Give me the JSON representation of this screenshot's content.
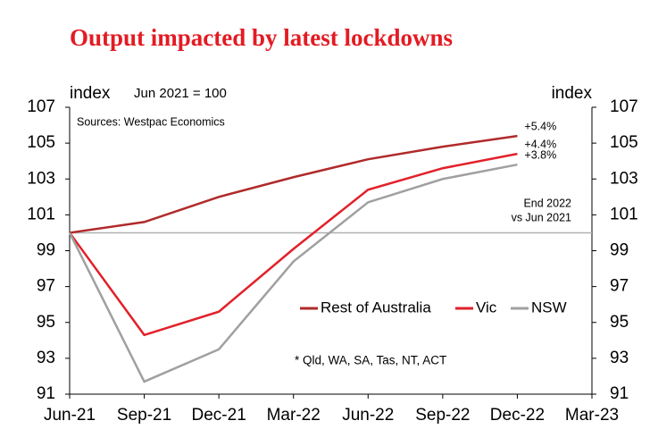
{
  "chart_data": {
    "type": "line",
    "title": "Output impacted by latest lockdowns",
    "y_label": "index",
    "y2_label": "index",
    "subtitle": "Jun 2021 = 100",
    "source": "Sources: Westpac Economics",
    "footnote": "* Qld, WA, SA, Tas, NT, ACT",
    "annotations": [
      {
        "text": "+5.4%",
        "series": 0
      },
      {
        "text": "+4.4%",
        "series": 1
      },
      {
        "text": "+3.8%",
        "series": 2
      }
    ],
    "annotation_note": [
      "End 2022",
      "vs Jun 2021"
    ],
    "baseline": 100,
    "baseline_color": "#b0b0b0",
    "categories": [
      "Jun-21",
      "Sep-21",
      "Dec-21",
      "Mar-22",
      "Jun-22",
      "Sep-22",
      "Dec-22",
      "Mar-23"
    ],
    "series": [
      {
        "name": "Rest of Australia",
        "color": "#b02a2a",
        "values": [
          100,
          100.6,
          102.0,
          103.1,
          104.1,
          104.8,
          105.4,
          null
        ]
      },
      {
        "name": "Vic",
        "color": "#e2202a",
        "values": [
          100,
          94.3,
          95.6,
          99.1,
          102.4,
          103.6,
          104.4,
          null
        ]
      },
      {
        "name": "NSW",
        "color": "#a0a0a0",
        "values": [
          100,
          91.7,
          93.5,
          98.4,
          101.7,
          103.0,
          103.8,
          null
        ]
      }
    ],
    "ylim": [
      91,
      107
    ],
    "yticks": [
      91,
      93,
      95,
      97,
      99,
      101,
      103,
      105,
      107
    ],
    "y2lim": [
      91,
      107
    ],
    "y2ticks": [
      91,
      93,
      95,
      97,
      99,
      101,
      103,
      105,
      107
    ],
    "grid": false
  }
}
